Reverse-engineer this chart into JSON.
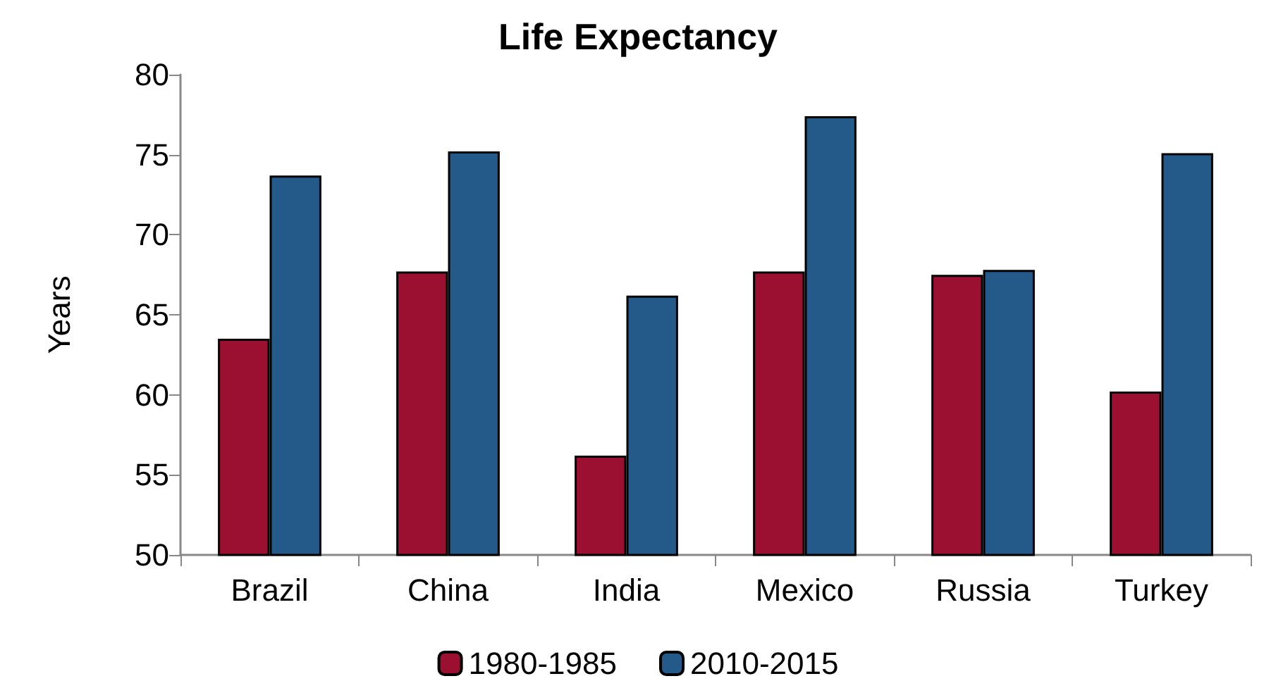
{
  "chart_data": {
    "type": "bar",
    "title": "Life Expectancy",
    "ylabel": "Years",
    "categories": [
      "Brazil",
      "China",
      "India",
      "Mexico",
      "Russia",
      "Turkey"
    ],
    "series": [
      {
        "name": "1980-1985",
        "color": "#9b1030",
        "values": [
          63.5,
          67.7,
          56.2,
          67.7,
          67.5,
          60.2
        ]
      },
      {
        "name": "2010-2015",
        "color": "#245a8a",
        "values": [
          73.7,
          75.2,
          66.2,
          77.4,
          67.8,
          75.1
        ]
      }
    ],
    "ylim": [
      50,
      80
    ],
    "yticks": [
      50,
      55,
      60,
      65,
      70,
      75,
      80
    ],
    "grid": false,
    "legend": "bottom"
  }
}
